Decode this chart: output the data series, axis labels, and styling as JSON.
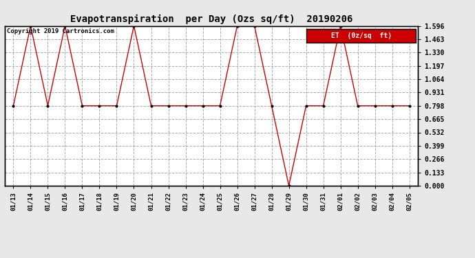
{
  "title": "Evapotranspiration  per Day (Ozs sq/ft)  20190206",
  "copyright_text": "Copyright 2019 Cartronics.com",
  "legend_label": "ET  (0z/sq  ft)",
  "legend_bg": "#cc0000",
  "legend_text_color": "#ffffff",
  "line_color": "#cc0000",
  "marker_color": "#000000",
  "bg_color": "#e8e8e8",
  "plot_bg_color": "#ffffff",
  "grid_color": "#999999",
  "ylim": [
    0.0,
    1.596
  ],
  "yticks": [
    0.0,
    0.133,
    0.266,
    0.399,
    0.532,
    0.665,
    0.798,
    0.931,
    1.064,
    1.197,
    1.33,
    1.463,
    1.596
  ],
  "dates": [
    "01/13",
    "01/14",
    "01/15",
    "01/16",
    "01/17",
    "01/18",
    "01/19",
    "01/20",
    "01/21",
    "01/22",
    "01/23",
    "01/24",
    "01/25",
    "01/26",
    "01/27",
    "01/28",
    "01/29",
    "01/30",
    "01/31",
    "02/01",
    "02/02",
    "02/03",
    "02/04",
    "02/05"
  ],
  "values": [
    0.798,
    1.596,
    0.798,
    1.596,
    0.798,
    0.798,
    0.798,
    1.596,
    0.798,
    0.798,
    0.798,
    0.798,
    0.798,
    1.596,
    1.596,
    0.798,
    0.0,
    0.798,
    0.798,
    1.596,
    0.798,
    0.798,
    0.798,
    0.798
  ],
  "figwidth": 6.9,
  "figheight": 3.75,
  "dpi": 100
}
